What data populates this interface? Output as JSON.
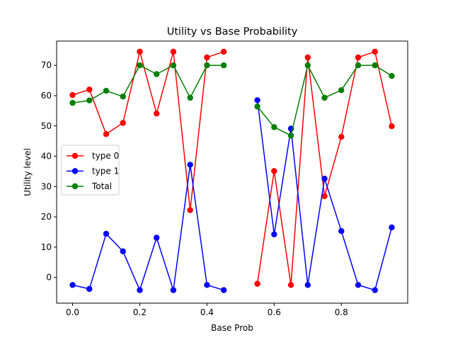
{
  "chart_data": {
    "type": "line",
    "title": "Utility vs Base Probability",
    "xlabel": "Base Prob",
    "ylabel": "Utility level",
    "xlim": [
      -0.0475,
      0.9975
    ],
    "ylim": [
      -8.5,
      78.0
    ],
    "xticks": [
      0.0,
      0.2,
      0.4,
      0.6,
      0.8
    ],
    "xtick_labels": [
      "0.0",
      "0.2",
      "0.4",
      "0.6",
      "0.8"
    ],
    "yticks": [
      0,
      10,
      20,
      30,
      40,
      50,
      60,
      70
    ],
    "ytick_labels": [
      "0",
      "10",
      "20",
      "30",
      "40",
      "50",
      "60",
      "70"
    ],
    "grid": false,
    "legend_position": "center-left",
    "x": [
      0.0,
      0.05,
      0.1,
      0.15,
      0.2,
      0.25,
      0.3,
      0.35,
      0.4,
      0.45,
      0.5,
      0.55,
      0.6,
      0.65,
      0.7,
      0.75,
      0.8,
      0.85,
      0.9,
      0.95
    ],
    "series": [
      {
        "name": "type 0",
        "color": "#ff0000",
        "values": [
          60.2,
          62.0,
          47.3,
          51.0,
          74.5,
          54.1,
          74.5,
          22.2,
          72.6,
          74.5,
          null,
          -2.1,
          35.1,
          -2.5,
          72.6,
          26.8,
          46.4,
          72.6,
          74.5,
          49.9
        ]
      },
      {
        "name": "type 1",
        "color": "#0000ff",
        "values": [
          -2.5,
          -3.8,
          14.4,
          8.6,
          -4.2,
          13.1,
          -4.2,
          37.2,
          -2.5,
          -4.2,
          null,
          58.5,
          14.2,
          49.1,
          -2.5,
          32.6,
          15.3,
          -2.5,
          -4.2,
          16.5
        ]
      },
      {
        "name": "Total",
        "color": "#008000",
        "values": [
          57.6,
          58.4,
          61.6,
          59.7,
          70.0,
          67.1,
          70.0,
          59.3,
          70.0,
          70.0,
          null,
          56.4,
          49.6,
          46.8,
          70.0,
          59.3,
          61.8,
          70.0,
          70.0,
          66.5
        ]
      }
    ]
  }
}
